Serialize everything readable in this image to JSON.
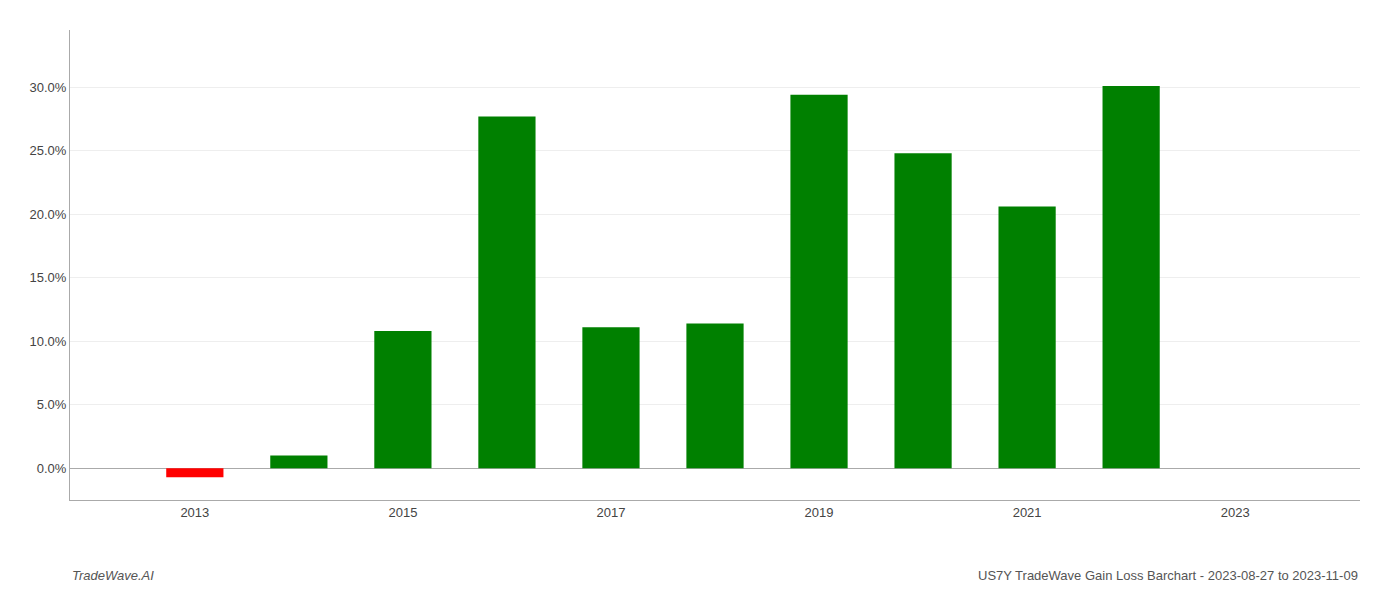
{
  "chart_data": {
    "type": "bar",
    "title": "US7Y TradeWave Gain Loss Barchart - 2023-08-27 to 2023-11-09",
    "annotations": [
      "TradeWave.AI"
    ],
    "x": [
      2013,
      2014,
      2015,
      2016,
      2017,
      2018,
      2019,
      2020,
      2021,
      2022
    ],
    "values": [
      -0.007,
      0.01,
      0.108,
      0.277,
      0.111,
      0.114,
      0.294,
      0.248,
      0.206,
      0.301
    ],
    "colors": [
      "#ff0000",
      "#008000",
      "#008000",
      "#008000",
      "#008000",
      "#008000",
      "#008000",
      "#008000",
      "#008000",
      "#008000"
    ],
    "xlim": [
      2011.8,
      2024.2
    ],
    "xticks": [
      2013,
      2015,
      2017,
      2019,
      2021,
      2023
    ],
    "ylim": [
      -0.025,
      0.345
    ],
    "yticks": [
      {
        "value": 0.0,
        "label": "0.0%"
      },
      {
        "value": 0.05,
        "label": "5.0%"
      },
      {
        "value": 0.1,
        "label": "10.0%"
      },
      {
        "value": 0.15,
        "label": "15.0%"
      },
      {
        "value": 0.2,
        "label": "20.0%"
      },
      {
        "value": 0.25,
        "label": "25.0%"
      },
      {
        "value": 0.3,
        "label": "30.0%"
      }
    ],
    "grid": true
  }
}
